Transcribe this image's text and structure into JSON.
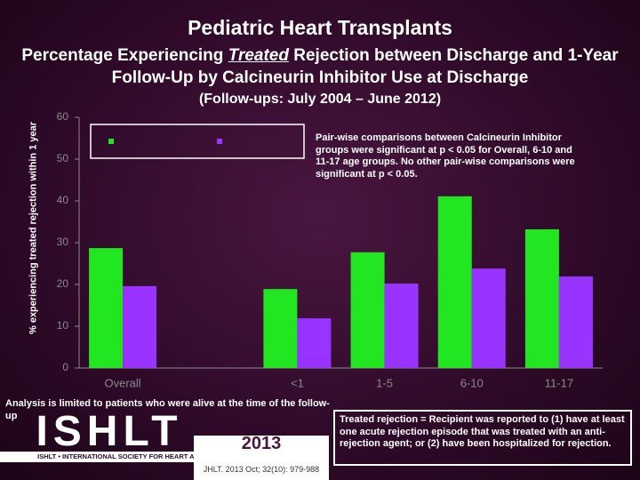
{
  "header": {
    "title": "Pediatric Heart Transplants",
    "subtitle_parts": [
      "Percentage Experiencing ",
      "Treated",
      " Rejection between Discharge and 1-Year Follow-Up by Calcineurin Inhibitor Use at Discharge"
    ],
    "period": "(Follow-ups: July 2004 – June 2012)"
  },
  "chart_data": {
    "type": "bar",
    "ylabel": "% experiencing treated rejection within 1 year",
    "categories": [
      "Overall",
      null,
      "<1",
      "1-5",
      "6-10",
      "11-17"
    ],
    "series": [
      {
        "color": "#22e622",
        "values": [
          28.7,
          null,
          18.9,
          27.7,
          41.1,
          33.2
        ]
      },
      {
        "color": "#9933ff",
        "values": [
          19.6,
          null,
          11.9,
          20.2,
          23.8,
          21.9
        ]
      }
    ],
    "ylim": [
      0,
      60
    ],
    "yticks": [
      0,
      10,
      20,
      30,
      40,
      50,
      60
    ],
    "annotation": "Pair-wise comparisons between Calcineurin Inhibitor groups were significant at p < 0.05 for Overall, 6-10 and 11-17 age groups. No other pair-wise comparisons were significant at p < 0.05."
  },
  "footer": {
    "left_note": "Analysis is limited to patients who were alive at the time of the follow-up",
    "right_note": "Treated rejection = Recipient was reported to (1) have at least one acute rejection episode that was treated with an anti-rejection agent; or (2) have been hospitalized for rejection.",
    "logo": "ISHLT",
    "logo_strip": "ISHLT • INTERNATIONAL SOCIETY FOR HEART AND LUNG TRANSPLANTATION",
    "year": "2013",
    "citation": "JHLT. 2013 Oct; 32(10): 979-988"
  }
}
